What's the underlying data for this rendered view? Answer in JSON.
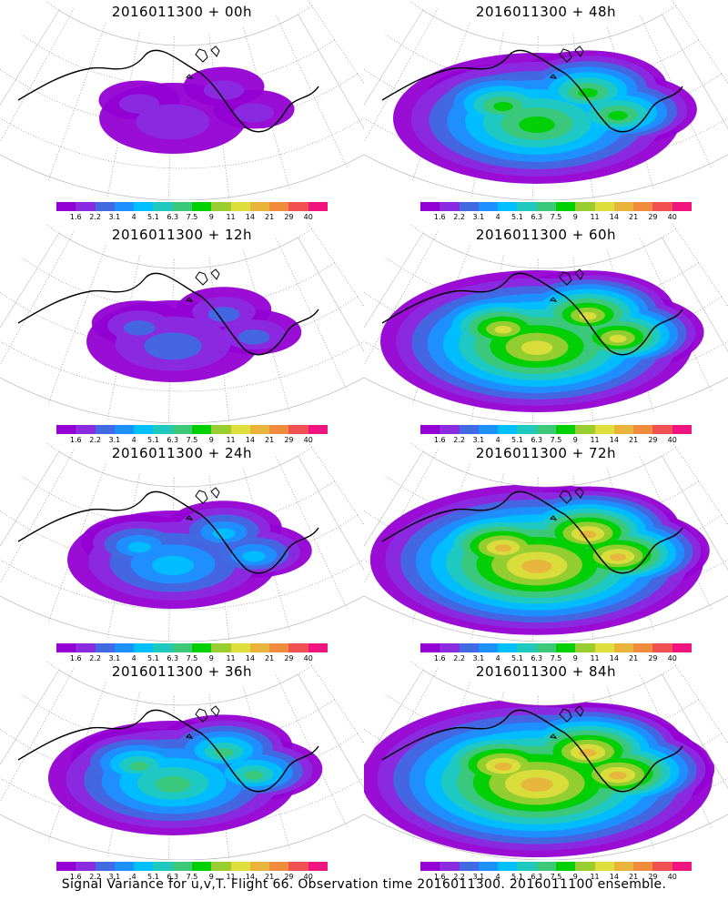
{
  "panels": [
    {
      "title": "2016011300 + 00h",
      "level": 0.15
    },
    {
      "title": "2016011300 + 48h",
      "level": 0.7
    },
    {
      "title": "2016011300 + 12h",
      "level": 0.25
    },
    {
      "title": "2016011300 + 60h",
      "level": 0.8
    },
    {
      "title": "2016011300 + 24h",
      "level": 0.4
    },
    {
      "title": "2016011300 + 72h",
      "level": 0.88
    },
    {
      "title": "2016011300 + 36h",
      "level": 0.55
    },
    {
      "title": "2016011300 + 84h",
      "level": 0.95
    }
  ],
  "colorbar": {
    "labels": [
      "1.6",
      "2.2",
      "3.1",
      "4",
      "5.1",
      "6.3",
      "7.5",
      "9",
      "11",
      "14",
      "21",
      "29",
      "40"
    ],
    "colors": [
      "#9400d3",
      "#8a2be2",
      "#4169e1",
      "#1e90ff",
      "#00bfff",
      "#20c8c0",
      "#3cc878",
      "#00d000",
      "#9acd32",
      "#dddd3c",
      "#e8b43c",
      "#f08c3c",
      "#f05050",
      "#f0147f"
    ]
  },
  "footer": "Signal Variance for u,v,T. Flight 66. Observation time 2016011300. 2016011100 ensemble."
}
